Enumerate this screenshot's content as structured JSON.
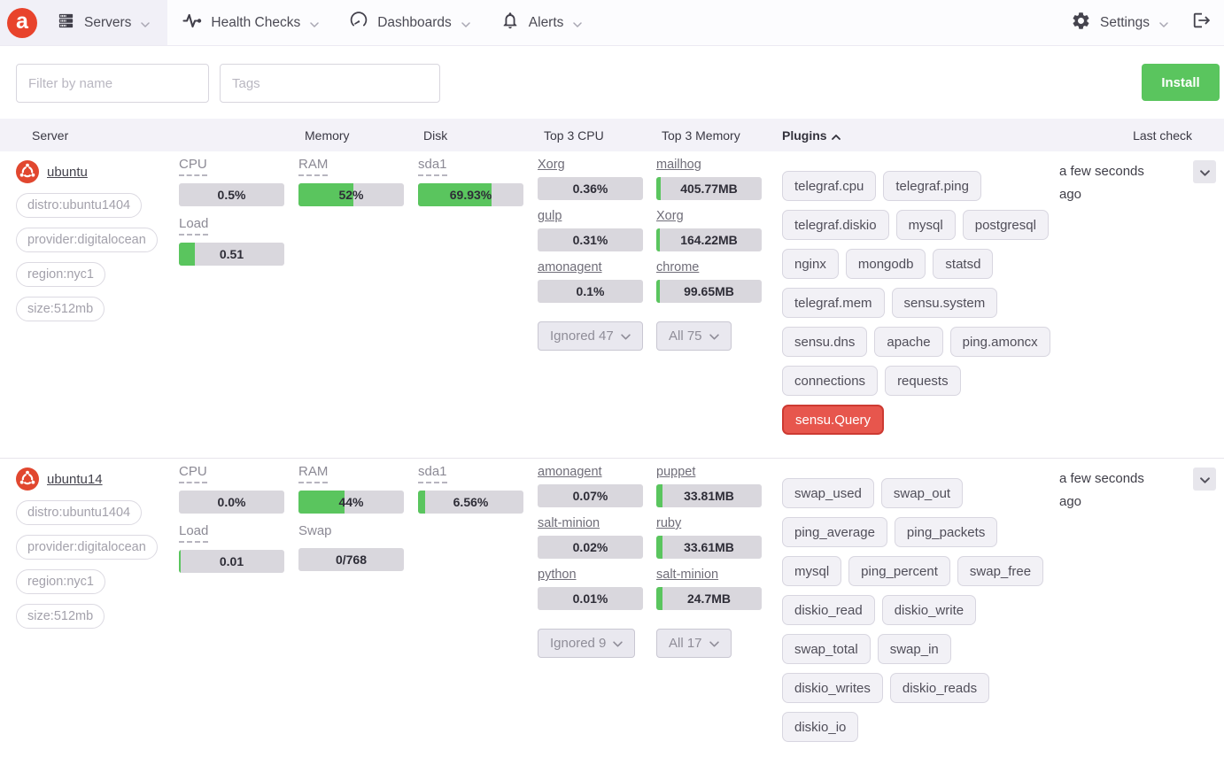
{
  "navbar": {
    "logo_letter": "a",
    "items": [
      {
        "label": "Servers",
        "icon": "server-rack-icon",
        "active": true
      },
      {
        "label": "Health Checks",
        "icon": "pulse-icon",
        "active": false
      },
      {
        "label": "Dashboards",
        "icon": "gauge-icon",
        "active": false
      },
      {
        "label": "Alerts",
        "icon": "bell-icon",
        "active": false
      }
    ],
    "settings_label": "Settings"
  },
  "filters": {
    "name_placeholder": "Filter by name",
    "tags_placeholder": "Tags",
    "install_label": "Install"
  },
  "table": {
    "headers": [
      "Server",
      "Memory",
      "Disk",
      "Top 3 CPU",
      "Top 3 Memory",
      "Plugins",
      "Last check"
    ],
    "sort": {
      "column": "Plugins",
      "direction": "asc"
    }
  },
  "colors": {
    "accent_green": "#5ac55e",
    "alert_red": "#e7564d",
    "alert_red_border": "#cd3a32",
    "brand_red": "#e8432c",
    "ubuntu_orange": "#e1472f",
    "bar_gray": "#d9d7dd"
  },
  "servers": [
    {
      "name": "ubuntu",
      "tags": [
        "distro:ubuntu1404",
        "provider:digitalocean",
        "region:nyc1",
        "size:512mb"
      ],
      "metric_cols": [
        [
          {
            "label": "CPU",
            "value": "0.5%",
            "fill_pct": 0,
            "dashed": true
          },
          {
            "label": "Load",
            "value": "0.51",
            "fill_pct": 15,
            "dashed": true
          }
        ],
        [
          {
            "label": "RAM",
            "value": "52%",
            "fill_pct": 52,
            "dashed": true
          }
        ],
        [
          {
            "label": "sda1",
            "value": "69.93%",
            "fill_pct": 70,
            "dashed": true
          }
        ]
      ],
      "top_cpu": {
        "items": [
          {
            "name": "Xorg",
            "value": "0.36%",
            "fill_pct": 0
          },
          {
            "name": "gulp",
            "value": "0.31%",
            "fill_pct": 0
          },
          {
            "name": "amonagent",
            "value": "0.1%",
            "fill_pct": 0
          }
        ],
        "more_label": "Ignored 47"
      },
      "top_memory": {
        "items": [
          {
            "name": "mailhog",
            "value": "405.77MB",
            "fill_pct": 4
          },
          {
            "name": "Xorg",
            "value": "164.22MB",
            "fill_pct": 3
          },
          {
            "name": "chrome",
            "value": "99.65MB",
            "fill_pct": 3
          }
        ],
        "more_label": "All 75"
      },
      "plugin_rows": [
        [
          "telegraf.cpu",
          "telegraf.ping"
        ],
        [
          "telegraf.diskio",
          "mysql",
          "postgresql"
        ],
        [
          "nginx",
          "mongodb",
          "statsd"
        ],
        [
          "telegraf.mem",
          "sensu.system"
        ],
        [
          "sensu.dns",
          "apache",
          "ping.amoncx"
        ],
        [
          "connections",
          "requests"
        ],
        [
          "sensu.Query"
        ]
      ],
      "alert_plugins": [
        "sensu.Query"
      ],
      "last_check": "a few seconds ago"
    },
    {
      "name": "ubuntu14",
      "tags": [
        "distro:ubuntu1404",
        "provider:digitalocean",
        "region:nyc1",
        "size:512mb"
      ],
      "metric_cols": [
        [
          {
            "label": "CPU",
            "value": "0.0%",
            "fill_pct": 0,
            "dashed": true
          },
          {
            "label": "Load",
            "value": "0.01",
            "fill_pct": 2,
            "dashed": true
          }
        ],
        [
          {
            "label": "RAM",
            "value": "44%",
            "fill_pct": 44,
            "dashed": true
          },
          {
            "label": "Swap",
            "value": "0/768",
            "fill_pct": 0,
            "dashed": false
          }
        ],
        [
          {
            "label": "sda1",
            "value": "6.56%",
            "fill_pct": 7,
            "dashed": true
          }
        ]
      ],
      "top_cpu": {
        "items": [
          {
            "name": "amonagent",
            "value": "0.07%",
            "fill_pct": 0
          },
          {
            "name": "salt-minion",
            "value": "0.02%",
            "fill_pct": 0
          },
          {
            "name": "python",
            "value": "0.01%",
            "fill_pct": 0
          }
        ],
        "more_label": "Ignored 9"
      },
      "top_memory": {
        "items": [
          {
            "name": "puppet",
            "value": "33.81MB",
            "fill_pct": 6
          },
          {
            "name": "ruby",
            "value": "33.61MB",
            "fill_pct": 6
          },
          {
            "name": "salt-minion",
            "value": "24.7MB",
            "fill_pct": 6
          }
        ],
        "more_label": "All 17"
      },
      "plugin_rows": [
        [
          "swap_used",
          "swap_out"
        ],
        [
          "ping_average",
          "ping_packets"
        ],
        [
          "mysql",
          "ping_percent",
          "swap_free"
        ],
        [
          "diskio_read",
          "diskio_write"
        ],
        [
          "swap_total",
          "swap_in"
        ],
        [
          "diskio_writes",
          "diskio_reads"
        ],
        [
          "diskio_io"
        ]
      ],
      "alert_plugins": [],
      "last_check": "a few seconds ago"
    }
  ]
}
